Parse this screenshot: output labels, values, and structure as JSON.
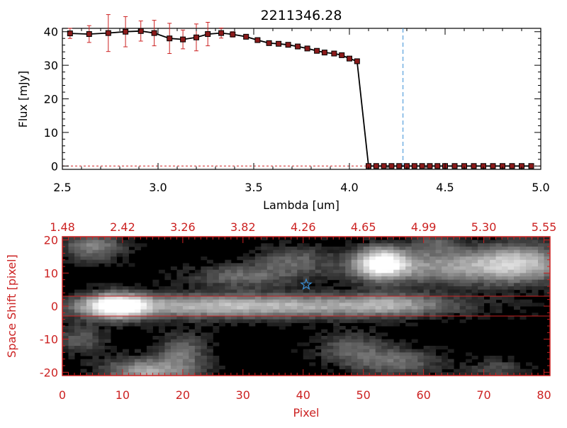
{
  "chart_data": [
    {
      "type": "line",
      "title": "2211346.28",
      "xlabel": "Lambda [um]",
      "ylabel": "Flux [mJy]",
      "xlim": [
        2.5,
        5.0
      ],
      "ylim": [
        -1,
        41
      ],
      "xticks": [
        "2.5",
        "3.0",
        "3.5",
        "4.0",
        "4.5",
        "5.0"
      ],
      "xtick_values": [
        2.5,
        3.0,
        3.5,
        4.0,
        4.5,
        5.0
      ],
      "yticks": [
        "0",
        "10",
        "20",
        "30",
        "40"
      ],
      "ytick_values": [
        0,
        10,
        20,
        30,
        40
      ],
      "marker_color": "#8b1a1a",
      "errorbar_color": "#cc2222",
      "line_color": "#000000",
      "vline": {
        "x": 4.28,
        "color": "#3a8fd6",
        "style": "dashed"
      },
      "hline": {
        "y": 0,
        "color": "#cc2222",
        "style": "dashed"
      },
      "series": [
        {
          "x": [
            2.54,
            2.64,
            2.74,
            2.83,
            2.91,
            2.98,
            3.06,
            3.13,
            3.2,
            3.26,
            3.33,
            3.39,
            3.46,
            3.52,
            3.58,
            3.63,
            3.68,
            3.73,
            3.78,
            3.83,
            3.87,
            3.92,
            3.96,
            4.0,
            4.04,
            4.1,
            4.14,
            4.18,
            4.22,
            4.26,
            4.3,
            4.34,
            4.38,
            4.42,
            4.46,
            4.5,
            4.55,
            4.6,
            4.65,
            4.7,
            4.75,
            4.8,
            4.85,
            4.9,
            4.95
          ],
          "y": [
            39.5,
            39.3,
            39.6,
            40.0,
            40.2,
            39.6,
            38.0,
            37.7,
            38.3,
            39.3,
            39.6,
            39.2,
            38.5,
            37.5,
            36.6,
            36.4,
            36.1,
            35.6,
            35.0,
            34.3,
            33.8,
            33.5,
            33.0,
            32.0,
            31.2,
            0,
            0,
            0,
            0,
            0,
            0,
            0,
            0,
            0,
            0,
            0,
            0,
            0,
            0,
            0,
            0,
            0,
            0,
            0,
            0
          ],
          "err": [
            1.5,
            2.5,
            5.5,
            4.5,
            3.0,
            3.8,
            4.5,
            2.8,
            4.0,
            3.5,
            1.5,
            0.8,
            0.5,
            0,
            0,
            0,
            0,
            0,
            0,
            0,
            0,
            0,
            0,
            0,
            0,
            0,
            0,
            0,
            0,
            0,
            0,
            0,
            0,
            0,
            0,
            0,
            0,
            0,
            0,
            0,
            0,
            0,
            0,
            0,
            0
          ]
        }
      ]
    },
    {
      "type": "heatmap",
      "xlabel": "Pixel",
      "ylabel": "Space Shift [pixel]",
      "xlim": [
        0,
        81
      ],
      "ylim": [
        -21,
        21
      ],
      "xticks": [
        "0",
        "10",
        "20",
        "30",
        "40",
        "50",
        "60",
        "70",
        "80"
      ],
      "xtick_values": [
        0,
        10,
        20,
        30,
        40,
        50,
        60,
        70,
        80
      ],
      "yticks": [
        "-20",
        "-10",
        "0",
        "10",
        "20"
      ],
      "ytick_values": [
        -20,
        -10,
        0,
        10,
        20
      ],
      "top_axis_labels": [
        "1.48",
        "2.42",
        "3.26",
        "3.82",
        "4.26",
        "4.65",
        "4.99",
        "5.30",
        "5.55"
      ],
      "top_axis_positions": [
        0,
        10,
        20,
        30,
        40,
        50,
        60,
        70,
        80
      ],
      "axis_color": "#cc2222",
      "extraction_band": [
        -3,
        3
      ],
      "band_color": "#cc2222",
      "star_marker": {
        "x": 40.5,
        "y": 6.5,
        "color": "#3a8fd6"
      },
      "sources": [
        {
          "x": 9,
          "y": 0,
          "sx": 3.5,
          "sy": 2.6,
          "amp": 1.0,
          "angle": 0
        },
        {
          "x": 30,
          "y": 0,
          "sx": 20,
          "sy": 2.5,
          "amp": 0.72,
          "angle": 0
        },
        {
          "x": 55,
          "y": 0.5,
          "sx": 6,
          "sy": 2.2,
          "amp": 0.35,
          "angle": 0
        },
        {
          "x": 53,
          "y": 13,
          "sx": 3,
          "sy": 3.2,
          "amp": 0.95,
          "angle": 0
        },
        {
          "x": 66,
          "y": 12,
          "sx": 12,
          "sy": 3.8,
          "amp": 0.55,
          "angle": 0
        },
        {
          "x": 76,
          "y": 13.5,
          "sx": 5,
          "sy": 4,
          "amp": 0.45,
          "angle": 0
        },
        {
          "x": 5,
          "y": 18,
          "sx": 3.5,
          "sy": 3,
          "amp": 0.45,
          "angle": 0
        },
        {
          "x": 30,
          "y": 9,
          "sx": 6,
          "sy": 2.5,
          "amp": 0.35,
          "angle": 0
        },
        {
          "x": 38,
          "y": 14,
          "sx": 4,
          "sy": 3,
          "amp": 0.3,
          "angle": 0
        },
        {
          "x": 14,
          "y": -20,
          "sx": 5,
          "sy": 3,
          "amp": 0.6,
          "angle": 0
        },
        {
          "x": 20,
          "y": -14,
          "sx": 3,
          "sy": 4,
          "amp": 0.35,
          "angle": 0
        },
        {
          "x": 3,
          "y": -10,
          "sx": 3,
          "sy": 3,
          "amp": 0.3,
          "angle": 0
        },
        {
          "x": 48,
          "y": -13,
          "sx": 4,
          "sy": 3.5,
          "amp": 0.3,
          "angle": 0
        },
        {
          "x": 56,
          "y": -17,
          "sx": 5,
          "sy": 3,
          "amp": 0.35,
          "angle": 0
        },
        {
          "x": 72,
          "y": -19,
          "sx": 3,
          "sy": 2,
          "amp": 0.25,
          "angle": 0
        },
        {
          "x": 62,
          "y": 19,
          "sx": 2.5,
          "sy": 2,
          "amp": 0.25,
          "angle": 0
        }
      ]
    }
  ]
}
